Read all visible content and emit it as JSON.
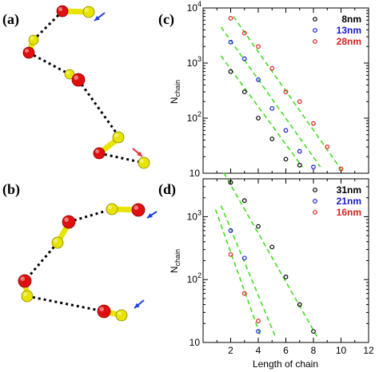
{
  "panels": {
    "a": "(a)",
    "b": "(b)",
    "c": "(c)",
    "d": "(d)"
  },
  "colors": {
    "red_atom": "#e01010",
    "yellow_atom": "#e8e400",
    "arrow_blue": "#2040e0",
    "arrow_red": "#e03030",
    "fit_line": "#44dd22",
    "series_black": "#000000",
    "series_blue": "#1a1ad0",
    "series_red": "#e02020"
  },
  "chart_data": [
    {
      "panel": "c",
      "type": "scatter",
      "scale_y": "log",
      "xlim": [
        0,
        12
      ],
      "ylim": [
        10,
        10000
      ],
      "ylabel": "N",
      "ylabel_sub": "chain",
      "xlabel": "",
      "xticks_visible": false,
      "yticks": [
        {
          "value": 10,
          "label": "10",
          "exp": ""
        },
        {
          "value": 100,
          "label": "10",
          "exp": "2"
        },
        {
          "value": 1000,
          "label": "10",
          "exp": "3"
        },
        {
          "value": 10000,
          "label": "10",
          "exp": "4"
        }
      ],
      "legend_position": "top-right",
      "series": [
        {
          "name": "8nm",
          "color": "#000000",
          "x": [
            2,
            3,
            4,
            5,
            6,
            7
          ],
          "y": [
            700,
            300,
            100,
            42,
            18,
            14
          ]
        },
        {
          "name": "13nm",
          "color": "#1a1ad0",
          "x": [
            2,
            3,
            4,
            5,
            6,
            7,
            8
          ],
          "y": [
            2400,
            1200,
            500,
            150,
            60,
            25,
            13
          ]
        },
        {
          "name": "28nm",
          "color": "#e02020",
          "x": [
            2,
            3,
            4,
            5,
            6,
            7,
            8,
            9,
            10
          ],
          "y": [
            6500,
            3500,
            2000,
            800,
            300,
            200,
            80,
            30,
            12
          ]
        }
      ],
      "fits": [
        {
          "x": [
            1.3,
            7.2
          ],
          "y": [
            1350,
            13
          ]
        },
        {
          "x": [
            1.3,
            8.5
          ],
          "y": [
            4500,
            13
          ]
        },
        {
          "x": [
            2.2,
            10.2
          ],
          "y": [
            7000,
            10
          ]
        }
      ]
    },
    {
      "panel": "d",
      "type": "scatter",
      "scale_y": "log",
      "xlim": [
        0,
        12
      ],
      "ylim": [
        10,
        4000
      ],
      "ylabel": "N",
      "ylabel_sub": "chain",
      "xlabel": "Length of chain",
      "xticks": [
        2,
        4,
        6,
        8,
        10,
        12
      ],
      "yticks": [
        {
          "value": 10,
          "label": "10",
          "exp": ""
        },
        {
          "value": 100,
          "label": "10",
          "exp": "2"
        },
        {
          "value": 1000,
          "label": "10",
          "exp": "3"
        }
      ],
      "legend_position": "top-right",
      "series": [
        {
          "name": "31nm",
          "color": "#000000",
          "x": [
            2,
            3,
            4,
            5,
            6,
            7,
            8
          ],
          "y": [
            3500,
            1800,
            700,
            330,
            110,
            40,
            15
          ]
        },
        {
          "name": "21nm",
          "color": "#1a1ad0",
          "x": [
            2,
            3,
            4
          ],
          "y": [
            600,
            220,
            15
          ]
        },
        {
          "name": "16nm",
          "color": "#e02020",
          "x": [
            2,
            3,
            4
          ],
          "y": [
            250,
            60,
            22
          ]
        }
      ],
      "fits": [
        {
          "x": [
            1.3,
            5.2
          ],
          "y": [
            1500,
            13
          ]
        },
        {
          "x": [
            1.5,
            8.4
          ],
          "y": [
            5000,
            11
          ]
        },
        {
          "x": [
            0.9,
            4.2
          ],
          "y": [
            1300,
            12
          ]
        }
      ]
    }
  ]
}
